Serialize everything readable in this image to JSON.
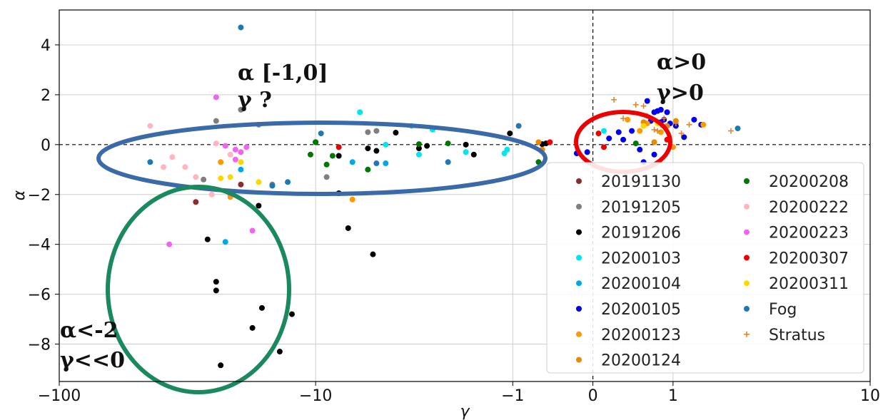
{
  "chart_data": {
    "type": "scatter",
    "title": "",
    "xlabel": "γ",
    "ylabel": "α",
    "xscale": "symlog",
    "ylim": [
      -9.5,
      5.4
    ],
    "x_ticks": [
      {
        "value": -100,
        "label": "−100"
      },
      {
        "value": -10,
        "label": "−10"
      },
      {
        "value": -1,
        "label": "−1"
      },
      {
        "value": 0,
        "label": "0"
      },
      {
        "value": 1,
        "label": "1"
      },
      {
        "value": 10,
        "label": "10"
      }
    ],
    "y_ticks": [
      {
        "value": 4,
        "label": "4"
      },
      {
        "value": 2,
        "label": "2"
      },
      {
        "value": 0,
        "label": "0"
      },
      {
        "value": -2,
        "label": "−2"
      },
      {
        "value": -4,
        "label": "−4"
      },
      {
        "value": -6,
        "label": "−6"
      },
      {
        "value": -8,
        "label": "−8"
      }
    ],
    "grid": true,
    "reference_lines": {
      "x": 0,
      "y": 0,
      "style": "dashed"
    },
    "legend_placement": "lower-right",
    "series": [
      {
        "name": "20191130",
        "marker": "dot",
        "color": "#8c2d2d",
        "points": [
          [
            -30,
            -2.3
          ],
          [
            -20,
            -1.6
          ]
        ]
      },
      {
        "name": "20191205",
        "marker": "dot",
        "color": "#7f7f7f",
        "points": [
          [
            -25,
            0.95
          ],
          [
            -20,
            1.4
          ],
          [
            -17,
            0.8
          ],
          [
            -15,
            -1.6
          ],
          [
            -9,
            -1.3
          ],
          [
            -6,
            0.5
          ],
          [
            -5.5,
            0.55
          ],
          [
            -28,
            -1.4
          ]
        ]
      },
      {
        "name": "20191206",
        "marker": "dot",
        "color": "#000000",
        "points": [
          [
            -27,
            -3.8
          ],
          [
            -25,
            -5.5
          ],
          [
            -25,
            -5.85
          ],
          [
            -24,
            -8.85
          ],
          [
            -18,
            -7.35
          ],
          [
            -17,
            -2.45
          ],
          [
            -16.5,
            -6.55
          ],
          [
            -14,
            -8.3
          ],
          [
            -12.5,
            -6.8
          ],
          [
            -8,
            -1.95
          ],
          [
            -7.3,
            -3.35
          ],
          [
            -5.7,
            -4.4
          ],
          [
            -10,
            0.1
          ],
          [
            -8,
            -0.45
          ],
          [
            -6,
            -0.15
          ],
          [
            -5.5,
            -0.25
          ],
          [
            -4.5,
            0.48
          ],
          [
            -3.5,
            -0.15
          ],
          [
            -3.2,
            -0.05
          ],
          [
            -2,
            0.0
          ],
          [
            -1.8,
            -0.4
          ],
          [
            -1.05,
            0.45
          ],
          [
            -0.5,
            0.05
          ],
          [
            -0.55,
            0.02
          ]
        ]
      },
      {
        "name": "20200103",
        "marker": "dot",
        "color": "#00e5ee",
        "points": [
          [
            -3.8,
            0.75
          ],
          [
            -3,
            0.6
          ],
          [
            -2,
            -0.3
          ],
          [
            -1.1,
            -0.2
          ],
          [
            -6.5,
            1.3
          ],
          [
            -5,
            0.0
          ],
          [
            -3.5,
            -0.4
          ],
          [
            -1.15,
            -0.35
          ],
          [
            0.1,
            0.55
          ]
        ]
      },
      {
        "name": "20200104",
        "marker": "dot",
        "color": "#00a8e6",
        "points": [
          [
            -22,
            -2.0
          ],
          [
            -23,
            -3.9
          ],
          [
            -20,
            -1.0
          ],
          [
            -7,
            -0.7
          ],
          [
            -5,
            -0.75
          ]
        ]
      },
      {
        "name": "20200105",
        "marker": "dot",
        "color": "#0000ee",
        "points": [
          [
            0.3,
            0.2
          ],
          [
            0.4,
            0.55
          ],
          [
            0.5,
            -0.2
          ],
          [
            0.55,
            -0.7
          ],
          [
            0.6,
            1.75
          ],
          [
            0.65,
            0.95
          ],
          [
            0.7,
            1.3
          ],
          [
            0.75,
            1.35
          ],
          [
            0.8,
            1.4
          ],
          [
            0.85,
            1.0
          ],
          [
            0.9,
            1.3
          ],
          [
            0.95,
            0.85
          ],
          [
            1.05,
            0.75
          ],
          [
            1.2,
            0.3
          ],
          [
            1.4,
            1.0
          ],
          [
            1.55,
            0.8
          ],
          [
            0.7,
            -0.4
          ],
          [
            -0.05,
            -0.3
          ],
          [
            -0.15,
            -0.35
          ],
          [
            0.15,
            0.25
          ],
          [
            0.25,
            0.5
          ],
          [
            0.8,
            0.9
          ]
        ]
      },
      {
        "name": "20200123",
        "marker": "dot",
        "color": "#ff9900",
        "points": [
          [
            -7,
            -2.2
          ],
          [
            -22,
            -2.1
          ],
          [
            -24,
            -0.7
          ],
          [
            0.35,
            1.0
          ],
          [
            0.5,
            0.55
          ],
          [
            0.6,
            0.85
          ],
          [
            0.8,
            0.5
          ],
          [
            1.0,
            -0.1
          ],
          [
            1.6,
            0.8
          ]
        ]
      },
      {
        "name": "20200124",
        "marker": "dot",
        "color": "#e68a00",
        "points": [
          [
            -0.55,
            -0.2
          ],
          [
            -0.6,
            0.1
          ],
          [
            0.55,
            0.9
          ],
          [
            0.7,
            0.1
          ],
          [
            0.9,
            0.75
          ],
          [
            1.05,
            0.95
          ]
        ]
      },
      {
        "name": "20200208",
        "marker": "dot",
        "color": "#007700",
        "points": [
          [
            -10,
            0.1
          ],
          [
            -9,
            -0.8
          ],
          [
            -8.5,
            -0.45
          ],
          [
            -6,
            -1.0
          ],
          [
            -3.5,
            0.02
          ],
          [
            -2.5,
            0.05
          ],
          [
            -0.6,
            -0.7
          ],
          [
            0.45,
            0.05
          ],
          [
            -10.5,
            -0.4
          ]
        ]
      },
      {
        "name": "20200222",
        "marker": "dot",
        "color": "#ffb6c1",
        "points": [
          [
            -45,
            0.75
          ],
          [
            -40,
            -0.9
          ],
          [
            -37,
            -0.5
          ],
          [
            -33,
            -0.9
          ],
          [
            -30,
            -1.3
          ],
          [
            -26,
            -2.0
          ],
          [
            -25,
            0.05
          ],
          [
            -22,
            -0.4
          ]
        ]
      },
      {
        "name": "20200223",
        "marker": "dot",
        "color": "#ee66ee",
        "points": [
          [
            -25,
            1.9
          ],
          [
            -23,
            -0.05
          ],
          [
            -21,
            -0.2
          ],
          [
            -20,
            -0.3
          ],
          [
            -19,
            -0.1
          ],
          [
            -18,
            -3.45
          ],
          [
            -22,
            -1.95
          ],
          [
            -21,
            -0.6
          ],
          [
            -38,
            -4.0
          ]
        ]
      },
      {
        "name": "20200307",
        "marker": "dot",
        "color": "#ee0000",
        "points": [
          [
            -8,
            -0.1
          ],
          [
            -0.45,
            0.1
          ],
          [
            0.05,
            0.45
          ],
          [
            0.1,
            -0.1
          ],
          [
            0.9,
            0.2
          ]
        ]
      },
      {
        "name": "20200311",
        "marker": "dot",
        "color": "#ffd700",
        "points": [
          [
            -24,
            -1.35
          ],
          [
            -22,
            -1.3
          ],
          [
            -20,
            -0.7
          ],
          [
            -17,
            -1.5
          ],
          [
            0.55,
            0.75
          ],
          [
            0.75,
            0.85
          ]
        ]
      },
      {
        "name": "Fog",
        "marker": "dot",
        "color": "#1f77b4",
        "points": [
          [
            -45,
            -0.7
          ],
          [
            -20,
            4.7
          ],
          [
            -15,
            -1.65
          ],
          [
            -13,
            -1.5
          ],
          [
            -9.5,
            0.45
          ],
          [
            -5.5,
            -0.75
          ],
          [
            -2.5,
            -0.7
          ],
          [
            -0.9,
            0.75
          ],
          [
            2.5,
            0.65
          ]
        ]
      },
      {
        "name": "Stratus",
        "marker": "plus",
        "color": "#e67e22",
        "points": [
          [
            0.2,
            1.8
          ],
          [
            0.3,
            1.05
          ],
          [
            0.45,
            1.6
          ],
          [
            0.55,
            1.55
          ],
          [
            0.6,
            1.15
          ],
          [
            0.7,
            0.6
          ],
          [
            0.75,
            0.55
          ],
          [
            0.8,
            0.8
          ],
          [
            0.85,
            1.05
          ],
          [
            0.9,
            0.7
          ],
          [
            1.05,
            0.85
          ],
          [
            1.15,
            0.45
          ],
          [
            1.3,
            0.8
          ],
          [
            2.3,
            0.55
          ]
        ]
      }
    ]
  },
  "annotations": [
    {
      "text_lines": [
        "α [-1,0]",
        "γ ?"
      ],
      "region_color": "#3a6aa8"
    },
    {
      "text_lines": [
        "α>0",
        "γ>0"
      ],
      "region_color": "#ee0000"
    },
    {
      "text_lines": [
        "α<-2",
        "γ<<0"
      ],
      "region_color": "#1a8a5e"
    }
  ]
}
